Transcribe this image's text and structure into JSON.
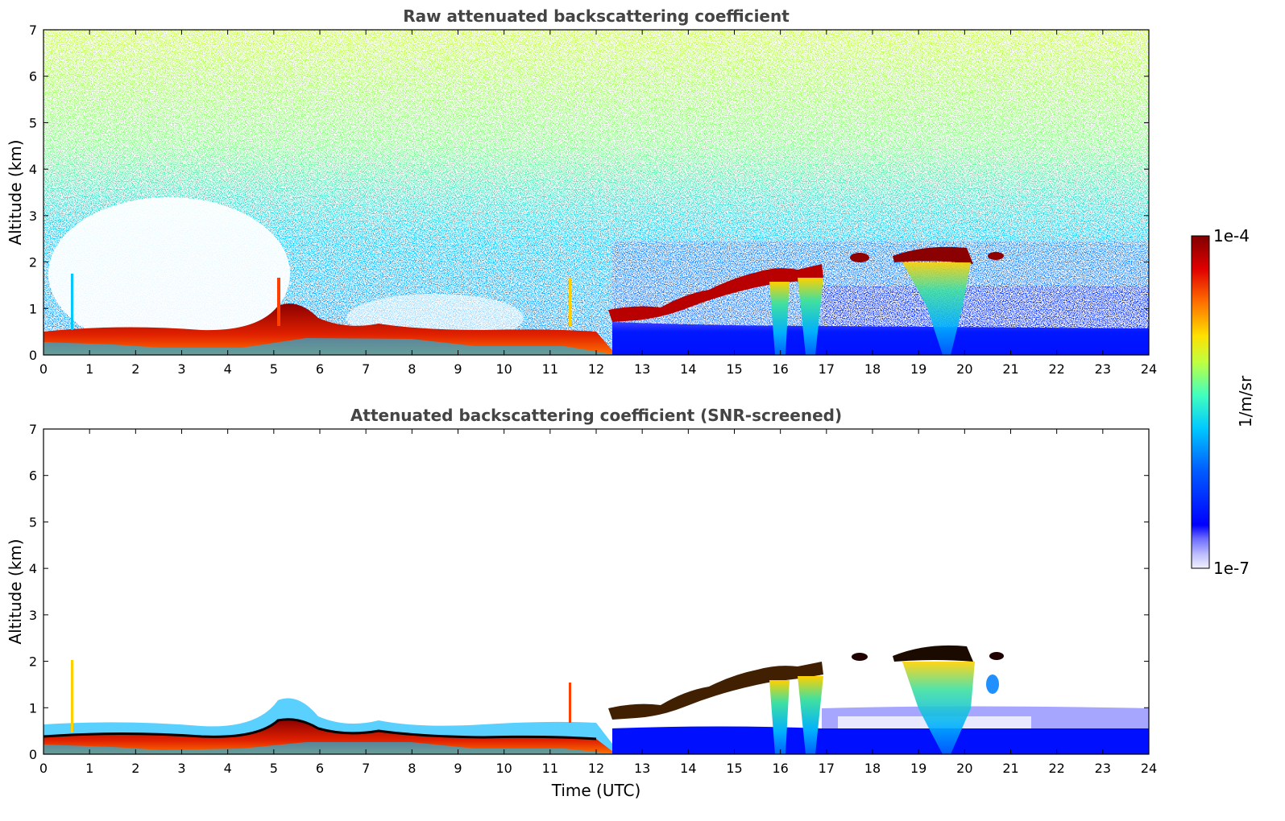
{
  "colorbar": {
    "max_label": "1e-4",
    "min_label": "1e-7",
    "unit_label": "1/m/sr",
    "colormap": "jet",
    "scale": "log",
    "low_end_colors": [
      "#f0f0ff",
      "#d8d8ff",
      "#b8b8ff",
      "#9090ff",
      "#6060ff",
      "#0000ff"
    ]
  },
  "chart_data": [
    {
      "type": "heatmap",
      "title": "Raw attenuated backscattering coefficient",
      "xlabel": "",
      "ylabel": "Altitude (km)",
      "xlim": [
        0,
        24
      ],
      "ylim": [
        0,
        7
      ],
      "xticks": [
        "0",
        "1",
        "2",
        "3",
        "4",
        "5",
        "6",
        "7",
        "8",
        "9",
        "10",
        "11",
        "12",
        "13",
        "14",
        "15",
        "16",
        "17",
        "18",
        "19",
        "20",
        "21",
        "22",
        "23",
        "24"
      ],
      "yticks": [
        "0",
        "1",
        "2",
        "3",
        "4",
        "5",
        "6",
        "7"
      ],
      "features": [
        {
          "desc": "boundary layer aerosol",
          "x_range": [
            0,
            12.5
          ],
          "altitude_km": [
            0,
            0.5
          ],
          "level": "1e-4"
        },
        {
          "desc": "rising cloud base layer",
          "x_range": [
            12.2,
            17
          ],
          "altitude_km": [
            0.8,
            1.9
          ],
          "level": "1e-4"
        },
        {
          "desc": "cloud layer",
          "x_range": [
            18.5,
            20.1
          ],
          "altitude_km": [
            1.9,
            2.2
          ],
          "level": "1e-4"
        },
        {
          "desc": "background noise increasing with altitude, strongest around 6-11 UTC",
          "x_range": [
            0,
            24
          ],
          "altitude_km": [
            1,
            7
          ]
        }
      ]
    },
    {
      "type": "heatmap",
      "title": "Attenuated backscattering coefficient (SNR-screened)",
      "xlabel": "Time (UTC)",
      "ylabel": "Altitude (km)",
      "xlim": [
        0,
        24
      ],
      "ylim": [
        0,
        7
      ],
      "xticks": [
        "0",
        "1",
        "2",
        "3",
        "4",
        "5",
        "6",
        "7",
        "8",
        "9",
        "10",
        "11",
        "12",
        "13",
        "14",
        "15",
        "16",
        "17",
        "18",
        "19",
        "20",
        "21",
        "22",
        "23",
        "24"
      ],
      "yticks": [
        "0",
        "1",
        "2",
        "3",
        "4",
        "5",
        "6",
        "7"
      ],
      "features": [
        {
          "desc": "boundary layer aerosol with black top line",
          "x_range": [
            0,
            12.5
          ],
          "altitude_km": [
            0,
            0.6
          ]
        },
        {
          "desc": "rising cloud base layer",
          "x_range": [
            12.2,
            17
          ],
          "altitude_km": [
            0.8,
            1.9
          ]
        },
        {
          "desc": "cloud layer",
          "x_range": [
            18.5,
            20.1
          ],
          "altitude_km": [
            1.9,
            2.3
          ]
        },
        {
          "desc": "noise removed above boundary layer",
          "x_range": [
            0,
            24
          ],
          "altitude_km": [
            1,
            7
          ]
        }
      ]
    }
  ]
}
